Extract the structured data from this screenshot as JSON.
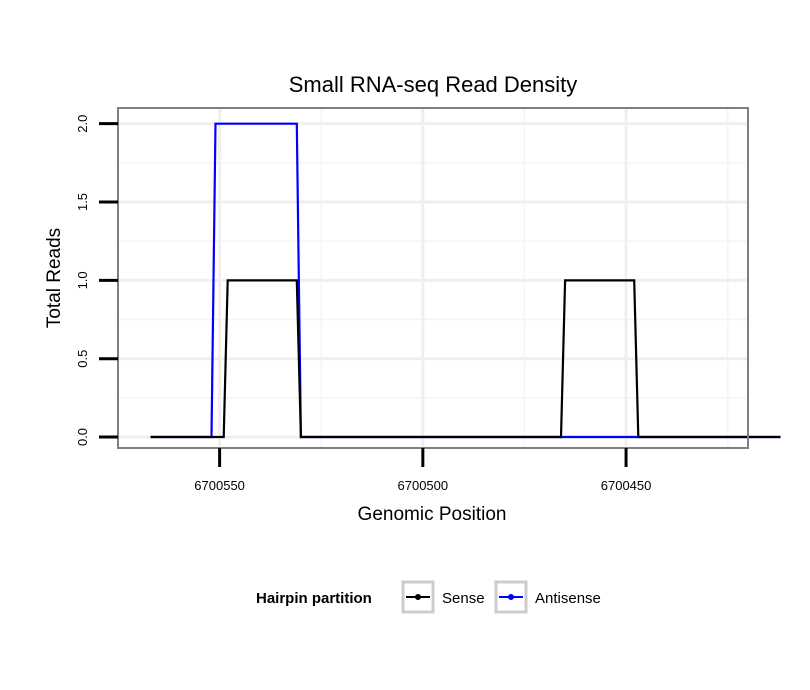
{
  "chart_data": {
    "type": "line",
    "title": "Small RNA-seq Read Density",
    "xlabel": "Genomic Position",
    "ylabel": "Total Reads",
    "x_reversed": true,
    "xlim": [
      6700575,
      6700420
    ],
    "ylim": [
      -0.07,
      2.1
    ],
    "x_ticks": [
      6700550,
      6700500,
      6700450
    ],
    "x_tick_labels": [
      "6700550",
      "6700500",
      "6700450"
    ],
    "y_ticks": [
      0.0,
      0.5,
      1.0,
      1.5,
      2.0
    ],
    "y_tick_labels": [
      "0.0",
      "0.5",
      "1.0",
      "1.5",
      "2.0"
    ],
    "grid": true,
    "legend": {
      "title": "Hairpin partition",
      "position": "bottom"
    },
    "series": [
      {
        "name": "Sense",
        "color": "#000000",
        "x": [
          6700567,
          6700549,
          6700548,
          6700531,
          6700530,
          6700466,
          6700465,
          6700448,
          6700447,
          6700412
        ],
        "y": [
          0,
          0,
          1,
          1,
          0,
          0,
          1,
          1,
          0,
          0
        ]
      },
      {
        "name": "Antisense",
        "color": "#0000ff",
        "x": [
          6700567,
          6700552,
          6700551,
          6700531,
          6700530,
          6700412
        ],
        "y": [
          0,
          0,
          2,
          2,
          0,
          0
        ]
      }
    ]
  }
}
